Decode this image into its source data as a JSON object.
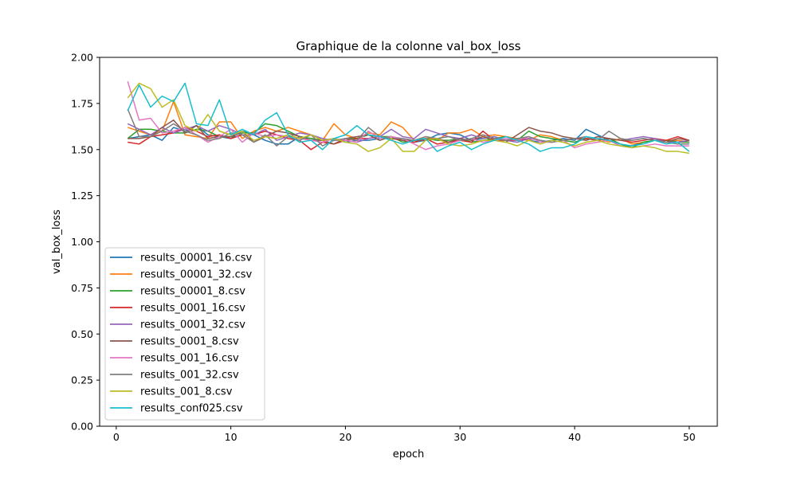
{
  "chart_data": {
    "type": "line",
    "title": "Graphique de la colonne val_box_loss",
    "xlabel": "epoch",
    "ylabel": "val_box_loss",
    "xlim": [
      -1.45,
      52.45
    ],
    "ylim": [
      0,
      2
    ],
    "xticks": [
      0,
      10,
      20,
      30,
      40,
      50
    ],
    "yticks": [
      0.0,
      0.25,
      0.5,
      0.75,
      1.0,
      1.25,
      1.5,
      1.75,
      2.0
    ],
    "ytick_labels": [
      "0.00",
      "0.25",
      "0.50",
      "0.75",
      "1.00",
      "1.25",
      "1.50",
      "1.75",
      "2.00"
    ],
    "xtick_labels": [
      "0",
      "10",
      "20",
      "30",
      "40",
      "50"
    ],
    "grid": false,
    "legend_position": "lower-left",
    "series": [
      {
        "name": "results_00001_16.csv",
        "color": "#1f77b4",
        "values": [
          1.56,
          1.57,
          1.58,
          1.55,
          1.62,
          1.6,
          1.63,
          1.58,
          1.57,
          1.56,
          1.6,
          1.58,
          1.55,
          1.53,
          1.53,
          1.57,
          1.56,
          1.55,
          1.56,
          1.54,
          1.55,
          1.55,
          1.56,
          1.57,
          1.55,
          1.54,
          1.55,
          1.58,
          1.59,
          1.58,
          1.55,
          1.56,
          1.57,
          1.55,
          1.56,
          1.55,
          1.54,
          1.55,
          1.56,
          1.55,
          1.61,
          1.58,
          1.55,
          1.52,
          1.52,
          1.54,
          1.55,
          1.54,
          1.55,
          1.54
        ]
      },
      {
        "name": "results_00001_32.csv",
        "color": "#ff7f0e",
        "values": [
          1.62,
          1.6,
          1.58,
          1.6,
          1.76,
          1.58,
          1.57,
          1.56,
          1.65,
          1.65,
          1.56,
          1.6,
          1.62,
          1.6,
          1.62,
          1.6,
          1.58,
          1.55,
          1.64,
          1.58,
          1.56,
          1.59,
          1.58,
          1.65,
          1.62,
          1.55,
          1.57,
          1.55,
          1.59,
          1.59,
          1.61,
          1.57,
          1.58,
          1.57,
          1.56,
          1.55,
          1.58,
          1.57,
          1.55,
          1.54,
          1.56,
          1.56,
          1.54,
          1.56,
          1.53,
          1.54,
          1.55,
          1.55,
          1.55,
          1.54
        ]
      },
      {
        "name": "results_00001_8.csv",
        "color": "#2ca02c",
        "values": [
          1.56,
          1.61,
          1.61,
          1.6,
          1.59,
          1.59,
          1.61,
          1.6,
          1.57,
          1.57,
          1.59,
          1.59,
          1.64,
          1.63,
          1.6,
          1.57,
          1.56,
          1.55,
          1.53,
          1.56,
          1.56,
          1.58,
          1.57,
          1.57,
          1.54,
          1.55,
          1.56,
          1.55,
          1.55,
          1.56,
          1.54,
          1.55,
          1.56,
          1.57,
          1.55,
          1.6,
          1.57,
          1.56,
          1.55,
          1.54,
          1.56,
          1.55,
          1.56,
          1.53,
          1.51,
          1.54,
          1.55,
          1.55,
          1.54,
          1.54
        ]
      },
      {
        "name": "results_0001_16.csv",
        "color": "#d62728",
        "values": [
          1.54,
          1.53,
          1.57,
          1.58,
          1.59,
          1.62,
          1.6,
          1.57,
          1.58,
          1.56,
          1.58,
          1.58,
          1.6,
          1.58,
          1.56,
          1.55,
          1.5,
          1.54,
          1.53,
          1.55,
          1.56,
          1.56,
          1.57,
          1.56,
          1.55,
          1.54,
          1.56,
          1.53,
          1.54,
          1.55,
          1.54,
          1.6,
          1.55,
          1.55,
          1.55,
          1.56,
          1.55,
          1.54,
          1.55,
          1.56,
          1.56,
          1.55,
          1.56,
          1.55,
          1.54,
          1.55,
          1.56,
          1.55,
          1.57,
          1.55
        ]
      },
      {
        "name": "results_0001_32.csv",
        "color": "#9467bd",
        "values": [
          1.64,
          1.61,
          1.58,
          1.62,
          1.59,
          1.61,
          1.63,
          1.6,
          1.63,
          1.61,
          1.58,
          1.58,
          1.61,
          1.55,
          1.57,
          1.59,
          1.58,
          1.56,
          1.55,
          1.55,
          1.54,
          1.56,
          1.57,
          1.61,
          1.57,
          1.56,
          1.61,
          1.59,
          1.57,
          1.56,
          1.58,
          1.56,
          1.57,
          1.55,
          1.54,
          1.56,
          1.55,
          1.54,
          1.55,
          1.56,
          1.55,
          1.57,
          1.56,
          1.55,
          1.56,
          1.57,
          1.56,
          1.54,
          1.54,
          1.55
        ]
      },
      {
        "name": "results_0001_8.csv",
        "color": "#8c564b",
        "values": [
          1.56,
          1.56,
          1.57,
          1.62,
          1.66,
          1.59,
          1.63,
          1.56,
          1.57,
          1.57,
          1.6,
          1.54,
          1.57,
          1.6,
          1.59,
          1.57,
          1.55,
          1.55,
          1.53,
          1.56,
          1.57,
          1.58,
          1.55,
          1.57,
          1.55,
          1.55,
          1.55,
          1.56,
          1.54,
          1.56,
          1.55,
          1.57,
          1.55,
          1.54,
          1.58,
          1.62,
          1.6,
          1.59,
          1.57,
          1.56,
          1.55,
          1.57,
          1.56,
          1.55,
          1.55,
          1.56,
          1.55,
          1.54,
          1.56,
          1.55
        ]
      },
      {
        "name": "results_001_16.csv",
        "color": "#e377c2",
        "values": [
          1.87,
          1.66,
          1.67,
          1.59,
          1.6,
          1.62,
          1.58,
          1.54,
          1.57,
          1.61,
          1.54,
          1.59,
          1.57,
          1.58,
          1.57,
          1.56,
          1.55,
          1.54,
          1.56,
          1.55,
          1.54,
          1.6,
          1.56,
          1.57,
          1.56,
          1.53,
          1.5,
          1.52,
          1.53,
          1.55,
          1.56,
          1.54,
          1.55,
          1.56,
          1.55,
          1.57,
          1.54,
          1.54,
          1.55,
          1.51,
          1.53,
          1.54,
          1.55,
          1.52,
          1.51,
          1.52,
          1.53,
          1.52,
          1.52,
          1.52
        ]
      },
      {
        "name": "results_001_32.csv",
        "color": "#7f7f7f",
        "values": [
          1.72,
          1.57,
          1.57,
          1.6,
          1.64,
          1.6,
          1.58,
          1.55,
          1.56,
          1.59,
          1.58,
          1.54,
          1.58,
          1.52,
          1.57,
          1.55,
          1.58,
          1.52,
          1.55,
          1.56,
          1.55,
          1.62,
          1.57,
          1.56,
          1.56,
          1.55,
          1.57,
          1.56,
          1.57,
          1.55,
          1.56,
          1.58,
          1.56,
          1.55,
          1.56,
          1.57,
          1.55,
          1.54,
          1.55,
          1.56,
          1.57,
          1.55,
          1.6,
          1.56,
          1.55,
          1.56,
          1.55,
          1.54,
          1.53,
          1.53
        ]
      },
      {
        "name": "results_001_8.csv",
        "color": "#bcbd22",
        "values": [
          1.78,
          1.86,
          1.83,
          1.73,
          1.77,
          1.63,
          1.6,
          1.69,
          1.6,
          1.58,
          1.6,
          1.55,
          1.57,
          1.56,
          1.58,
          1.56,
          1.58,
          1.55,
          1.56,
          1.54,
          1.53,
          1.49,
          1.51,
          1.56,
          1.49,
          1.49,
          1.55,
          1.56,
          1.53,
          1.52,
          1.53,
          1.55,
          1.55,
          1.54,
          1.52,
          1.55,
          1.53,
          1.55,
          1.54,
          1.52,
          1.54,
          1.55,
          1.53,
          1.52,
          1.51,
          1.52,
          1.51,
          1.49,
          1.49,
          1.48
        ]
      },
      {
        "name": "results_conf025.csv",
        "color": "#17becf",
        "values": [
          1.71,
          1.85,
          1.73,
          1.79,
          1.76,
          1.86,
          1.64,
          1.63,
          1.77,
          1.58,
          1.61,
          1.58,
          1.66,
          1.7,
          1.58,
          1.54,
          1.55,
          1.5,
          1.56,
          1.58,
          1.63,
          1.58,
          1.57,
          1.55,
          1.53,
          1.55,
          1.56,
          1.49,
          1.52,
          1.54,
          1.5,
          1.53,
          1.55,
          1.57,
          1.55,
          1.53,
          1.49,
          1.51,
          1.51,
          1.53,
          1.57,
          1.56,
          1.55,
          1.53,
          1.52,
          1.53,
          1.55,
          1.53,
          1.54,
          1.49
        ]
      }
    ]
  }
}
